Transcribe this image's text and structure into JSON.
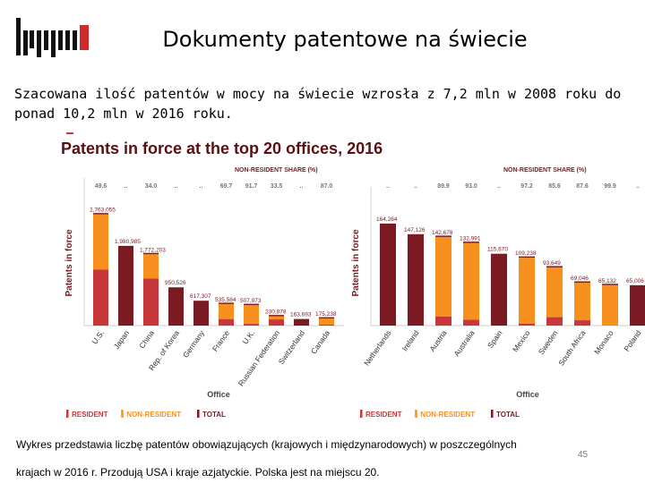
{
  "slide": {
    "title": "Dokumenty patentowe na świecie",
    "intro": "Szacowana ilość patentów w mocy na świecie wzrosła z 7,2 mln w 2008 roku do ponad 10,2 mln w 2016 roku.",
    "footnote_line1": "Wykres przedstawia liczbę patentów obowiązujących (krajowych i międzynarodowych) w poszczególnych",
    "footnote_line2": "krajach w 2016 r. Przodują USA i kraje azjatyckie. Polska jest na miejscu 20.",
    "page_number": "45"
  },
  "colors": {
    "resident": "#c8373a",
    "non_resident": "#f7901e",
    "total": "#7a1a22",
    "title": "#5a0f14",
    "share_label": "#7a1a22",
    "axis": "#8a8a8a"
  },
  "chart_data": {
    "type": "bar",
    "title": "Patents in force at the top 20 offices, 2016",
    "ylabel": "Patents in force",
    "xlabel": "Office",
    "share_header": "NON-RESIDENT SHARE (%)",
    "legend": [
      "RESIDENT",
      "NON-RESIDENT",
      "TOTAL"
    ],
    "panels": [
      {
        "categories": [
          "U.S.",
          "Japan",
          "China",
          "Rep. of Korea",
          "Germany",
          "France",
          "U.K.",
          "Russian Federation",
          "Switzerland",
          "Canada"
        ],
        "bar_kind": [
          "stacked",
          "total",
          "stacked",
          "total",
          "total",
          "stacked",
          "stacked",
          "stacked",
          "total",
          "stacked"
        ],
        "totals": [
          2763055,
          1980985,
          1772203,
          950526,
          617307,
          535584,
          507973,
          230878,
          163693,
          175238
        ],
        "value_labels": [
          "2,763,055",
          "1,980,985",
          "1,772,203",
          "950,526",
          "617,307",
          "535,584",
          "507,973",
          "230,878",
          "163,693",
          "175,238"
        ],
        "non_resident_share": [
          "49.6",
          "..",
          "34.0",
          "..",
          "..",
          "69.7",
          "91.7",
          "33.5",
          "..",
          "87.0"
        ],
        "ylim": [
          0,
          3000000
        ]
      },
      {
        "categories": [
          "Netherlands",
          "Ireland",
          "Austria",
          "Australia",
          "Spain",
          "Mexico",
          "Sweden",
          "South Africa",
          "Monaco",
          "Poland"
        ],
        "bar_kind": [
          "total",
          "total",
          "stacked",
          "stacked",
          "total",
          "stacked",
          "stacked",
          "stacked",
          "stacked",
          "total"
        ],
        "totals": [
          164264,
          147126,
          142678,
          132991,
          115670,
          109238,
          93649,
          69046,
          65132,
          65006
        ],
        "value_labels": [
          "164,264",
          "147,126",
          "142,678",
          "132,991",
          "115,670",
          "109,238",
          "93,649",
          "69,046",
          "65,132",
          "65,006"
        ],
        "non_resident_share": [
          "..",
          "..",
          "89.9",
          "93.0",
          "..",
          "97.2",
          "85.6",
          "87.6",
          "99.9",
          ".."
        ],
        "ylim": [
          0,
          180000
        ]
      }
    ]
  }
}
